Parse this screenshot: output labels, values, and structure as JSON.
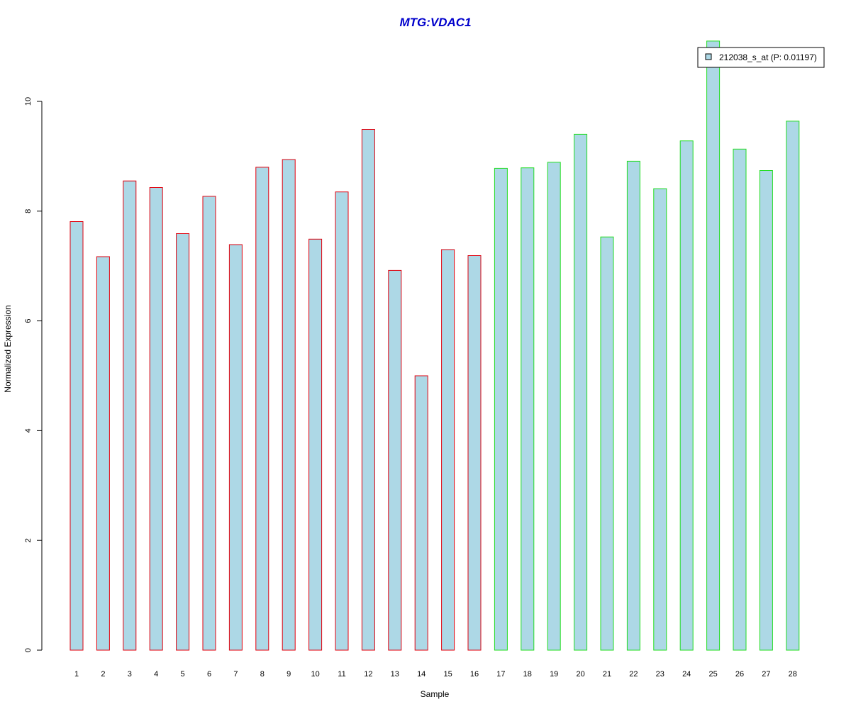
{
  "chart_data": {
    "type": "bar",
    "title": "MTG:VDAC1",
    "xlabel": "Sample",
    "ylabel": "Normalized Expression",
    "ylim": [
      0,
      11.2
    ],
    "yticks": [
      0,
      2,
      4,
      6,
      8,
      10
    ],
    "categories": [
      "1",
      "2",
      "3",
      "4",
      "5",
      "6",
      "7",
      "8",
      "9",
      "10",
      "11",
      "12",
      "13",
      "14",
      "15",
      "16",
      "17",
      "18",
      "19",
      "20",
      "21",
      "22",
      "23",
      "24",
      "25",
      "26",
      "27",
      "28"
    ],
    "series": [
      {
        "name": "212038_s_at (P: 0.01197)",
        "values": [
          7.81,
          7.17,
          8.55,
          8.43,
          7.59,
          8.27,
          7.39,
          8.8,
          8.94,
          7.49,
          8.35,
          9.49,
          6.92,
          5.0,
          7.3,
          7.19,
          8.78,
          8.79,
          8.89,
          9.4,
          7.53,
          8.91,
          8.41,
          9.28,
          11.1,
          9.13,
          8.74,
          9.64
        ]
      }
    ],
    "groups": [
      {
        "from": 1,
        "to": 16,
        "border_color": "#e0000d"
      },
      {
        "from": 17,
        "to": 28,
        "border_color": "#22dd22"
      }
    ],
    "bar_fill": "#add8e6",
    "title_color": "#0000cc",
    "legend_position": "top-right",
    "grid": false
  }
}
